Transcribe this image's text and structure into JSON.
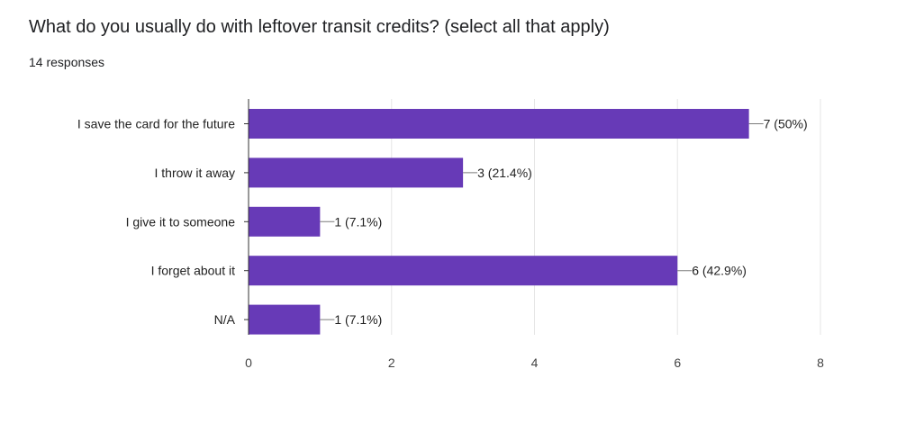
{
  "question": {
    "title": "What do you usually do with leftover transit credits? (select all that apply)",
    "responses": "14 responses"
  },
  "colors": {
    "bar": "#673ab7",
    "grid": "#e6e6e6",
    "axis": "#333333",
    "leader": "#7a7a7a"
  },
  "chart_data": {
    "type": "bar",
    "orientation": "horizontal",
    "categories": [
      "I save the card for the future",
      "I throw it away",
      "I give it to someone",
      "I forget about it",
      "N/A"
    ],
    "values": [
      7,
      3,
      1,
      6,
      1
    ],
    "data_labels": [
      "7 (50%)",
      "3 (21.4%)",
      "1 (7.1%)",
      "6 (42.9%)",
      "1 (7.1%)"
    ],
    "xlim": [
      0,
      8
    ],
    "xticks": [
      0,
      2,
      4,
      6,
      8
    ],
    "grid": true
  }
}
